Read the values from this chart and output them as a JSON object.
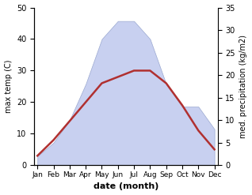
{
  "months": [
    "Jan",
    "Feb",
    "Mar",
    "Apr",
    "May",
    "Jun",
    "Jul",
    "Aug",
    "Sep",
    "Oct",
    "Nov",
    "Dec"
  ],
  "temperature": [
    3,
    8,
    14,
    20,
    26,
    28,
    30,
    30,
    26,
    19,
    11,
    5
  ],
  "precipitation": [
    2,
    5,
    10,
    18,
    28,
    32,
    32,
    28,
    18,
    13,
    13,
    8
  ],
  "temp_color": "#b03030",
  "precip_fill_color": "#c8d0f0",
  "precip_edge_color": "#9aa8d0",
  "left_ylim": [
    0,
    50
  ],
  "right_ylim": [
    0,
    35
  ],
  "left_ylabel": "max temp (C)",
  "right_ylabel": "med. precipitation (kg/m2)",
  "xlabel": "date (month)",
  "line_width": 1.8
}
